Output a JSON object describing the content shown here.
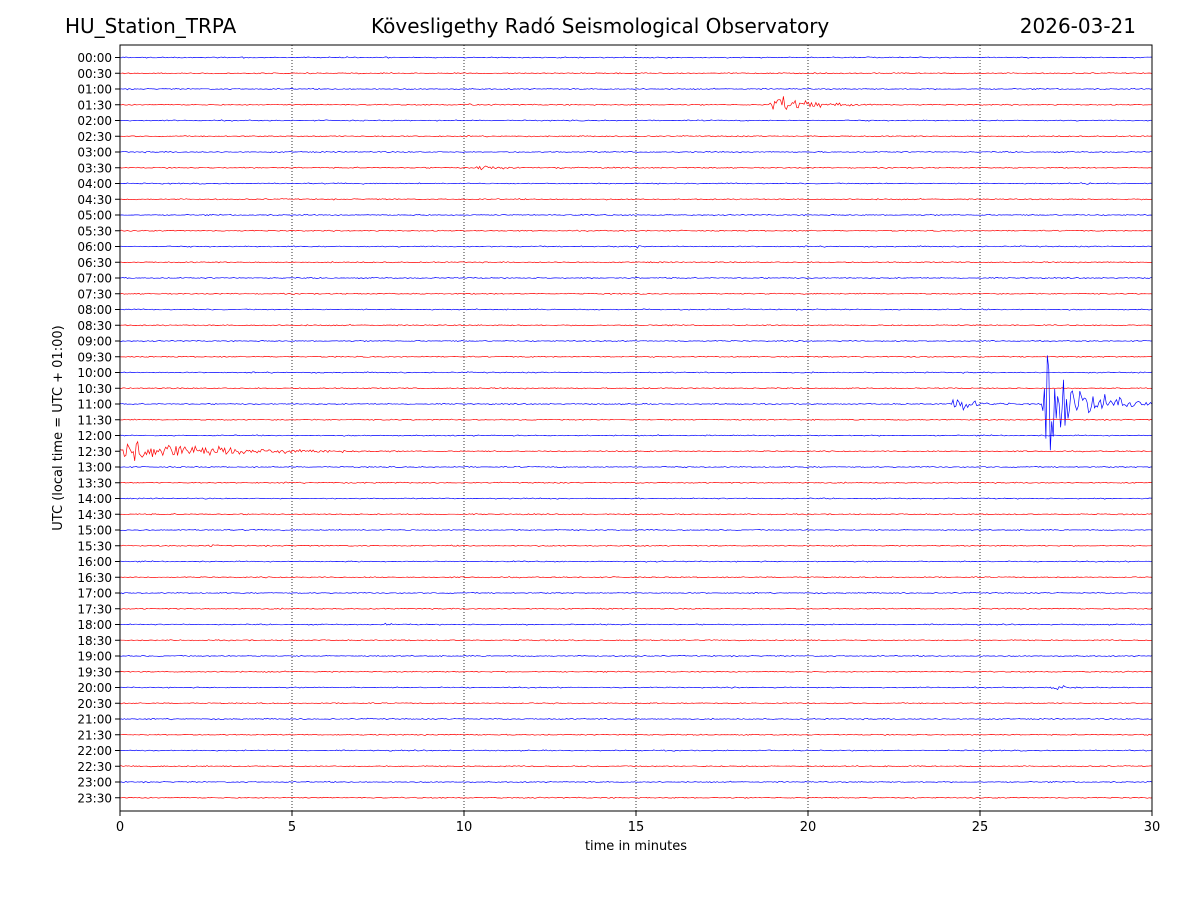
{
  "header": {
    "station": "HU_Station_TRPA",
    "title": "Kövesligethy Radó Seismological Observatory",
    "date": "2026-03-21"
  },
  "chart_data": {
    "type": "helicorder",
    "xlabel": "time in minutes",
    "ylabel": "UTC (local time = UTC + 01:00)",
    "xlim": [
      0,
      30
    ],
    "xticks": [
      "0",
      "5",
      "10",
      "15",
      "20",
      "25",
      "30"
    ],
    "vertical_gridlines": [
      5,
      10,
      15,
      20,
      25
    ],
    "row_labels": [
      "00:00",
      "00:30",
      "01:00",
      "01:30",
      "02:00",
      "02:30",
      "03:00",
      "03:30",
      "04:00",
      "04:30",
      "05:00",
      "05:30",
      "06:00",
      "06:30",
      "07:00",
      "07:30",
      "08:00",
      "08:30",
      "09:00",
      "09:30",
      "10:00",
      "10:30",
      "11:00",
      "11:30",
      "12:00",
      "12:30",
      "13:00",
      "13:30",
      "14:00",
      "14:30",
      "15:00",
      "15:30",
      "16:00",
      "16:30",
      "17:00",
      "17:30",
      "18:00",
      "18:30",
      "19:00",
      "19:30",
      "20:00",
      "20:30",
      "21:00",
      "21:30",
      "22:00",
      "22:30",
      "23:00",
      "23:30"
    ],
    "trace_colors": [
      "#0000ff",
      "#ff0000"
    ],
    "events": [
      {
        "row": "01:30",
        "start_min": 18.9,
        "duration_min": 3.5,
        "amplitude": 0.9
      },
      {
        "row": "01:30",
        "start_min": 10.0,
        "duration_min": 0.8,
        "amplitude": 0.25
      },
      {
        "row": "03:30",
        "start_min": 10.3,
        "duration_min": 1.5,
        "amplitude": 0.45
      },
      {
        "row": "03:30",
        "start_min": 12.5,
        "duration_min": 1.5,
        "amplitude": 0.12
      },
      {
        "row": "04:00",
        "start_min": 27.9,
        "duration_min": 0.6,
        "amplitude": 0.3
      },
      {
        "row": "06:00",
        "start_min": 15.0,
        "duration_min": 0.5,
        "amplitude": 0.2
      },
      {
        "row": "11:00",
        "start_min": 24.2,
        "duration_min": 1.8,
        "amplitude": 1.0
      },
      {
        "row": "11:00",
        "start_min": 26.8,
        "duration_min": 3.2,
        "amplitude": 5.0
      },
      {
        "row": "12:30",
        "start_min": 0.0,
        "duration_min": 8.0,
        "amplitude": 1.1
      },
      {
        "row": "15:30",
        "start_min": 2.6,
        "duration_min": 0.3,
        "amplitude": 0.4
      },
      {
        "row": "18:00",
        "start_min": 7.7,
        "duration_min": 0.4,
        "amplitude": 0.25
      },
      {
        "row": "20:00",
        "start_min": 27.0,
        "duration_min": 1.0,
        "amplitude": 0.45
      }
    ]
  }
}
